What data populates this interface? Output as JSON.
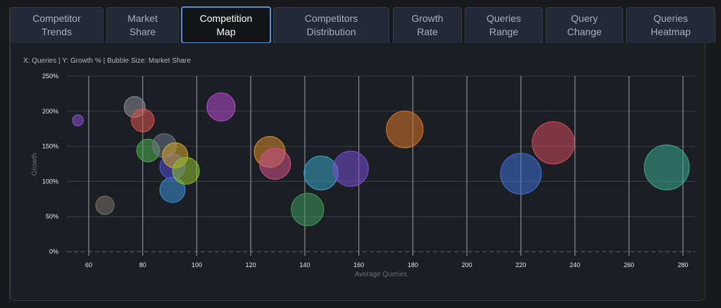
{
  "tabs": [
    {
      "label": "Competitor\nTrends",
      "active": false
    },
    {
      "label": "Market\nShare",
      "active": false
    },
    {
      "label": "Competition\nMap",
      "active": true
    },
    {
      "label": "Competitors\nDistribution",
      "active": false
    },
    {
      "label": "Growth\nRate",
      "active": false
    },
    {
      "label": "Queries\nRange",
      "active": false
    },
    {
      "label": "Query\nChange",
      "active": false
    },
    {
      "label": "Queries\nHeatmap",
      "active": false
    }
  ],
  "panel": {
    "subtitle": "X: Queries | Y: Growth % | Bubble Size: Market Share"
  },
  "chart_data": {
    "type": "scatter",
    "variant": "bubble",
    "title": "",
    "xlabel": "Average Queries",
    "ylabel": "Growth",
    "xlim": [
      53,
      287
    ],
    "ylim": [
      0,
      250
    ],
    "x_ticks": [
      60,
      80,
      100,
      120,
      140,
      160,
      180,
      200,
      220,
      240,
      260,
      280
    ],
    "y_ticks": [
      0,
      50,
      100,
      150,
      200,
      250
    ],
    "y_tick_labels": [
      "0%",
      "50%",
      "100%",
      "150%",
      "200%",
      "250%"
    ],
    "grid": true,
    "legend": "none",
    "size_encoding": "Market Share (relative)",
    "points": [
      {
        "x": 56,
        "y": 187,
        "size": 0.6,
        "color": "#8b4fd6"
      },
      {
        "x": 77,
        "y": 206,
        "size": 2.2,
        "color": "#8a8d93"
      },
      {
        "x": 80,
        "y": 187,
        "size": 2.6,
        "color": "#d9534f"
      },
      {
        "x": 82,
        "y": 144,
        "size": 2.6,
        "color": "#4caf50"
      },
      {
        "x": 88,
        "y": 151,
        "size": 2.9,
        "color": "#6b7686"
      },
      {
        "x": 91,
        "y": 88,
        "size": 3.2,
        "color": "#3b8fd0"
      },
      {
        "x": 91,
        "y": 121,
        "size": 3.2,
        "color": "#5150d8"
      },
      {
        "x": 92,
        "y": 137,
        "size": 3.2,
        "color": "#d4a62a"
      },
      {
        "x": 96,
        "y": 115,
        "size": 3.6,
        "color": "#8cbf2f"
      },
      {
        "x": 66,
        "y": 66,
        "size": 1.7,
        "color": "#78716a"
      },
      {
        "x": 109,
        "y": 206,
        "size": 4.0,
        "color": "#b44bcf"
      },
      {
        "x": 127,
        "y": 142,
        "size": 4.8,
        "color": "#d58a2a"
      },
      {
        "x": 129,
        "y": 125,
        "size": 4.8,
        "color": "#d0508a"
      },
      {
        "x": 146,
        "y": 112,
        "size": 5.8,
        "color": "#3aa3c4"
      },
      {
        "x": 141,
        "y": 60,
        "size": 5.3,
        "color": "#3d9a5e"
      },
      {
        "x": 157,
        "y": 118,
        "size": 6.3,
        "color": "#7650d4"
      },
      {
        "x": 177,
        "y": 174,
        "size": 6.8,
        "color": "#d9742a"
      },
      {
        "x": 220,
        "y": 111,
        "size": 8.4,
        "color": "#3f6fd1"
      },
      {
        "x": 232,
        "y": 155,
        "size": 9.0,
        "color": "#d04a5c"
      },
      {
        "x": 274,
        "y": 120,
        "size": 10.2,
        "color": "#3aa892"
      }
    ]
  }
}
